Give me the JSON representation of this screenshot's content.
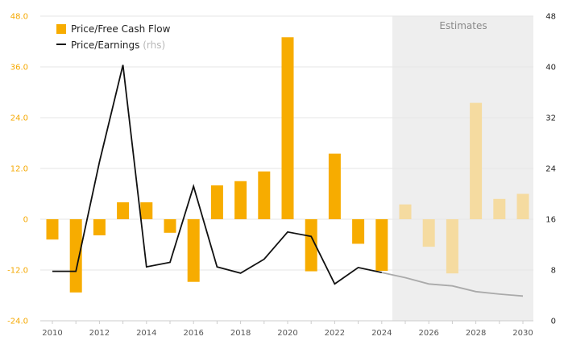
{
  "chart_data": {
    "type": "bar",
    "x": [
      2010,
      2011,
      2012,
      2013,
      2014,
      2015,
      2016,
      2017,
      2018,
      2019,
      2020,
      2021,
      2022,
      2023,
      2024,
      2025,
      2026,
      2027,
      2028,
      2029,
      2030
    ],
    "estimates_from": 2025,
    "estimates_label": "Estimates",
    "series": [
      {
        "name": "Price/Free Cash Flow",
        "kind": "bar",
        "axis": "left",
        "color": "#f7ac00",
        "estimate_color": "#f5dba0",
        "values": [
          -4.8,
          -17.3,
          -3.8,
          4.0,
          4.0,
          -3.2,
          -14.8,
          8.0,
          9.0,
          11.3,
          43.0,
          -12.3,
          15.5,
          -5.8,
          -12.2,
          3.5,
          -6.5,
          -12.8,
          27.5,
          4.8,
          6.0
        ]
      },
      {
        "name": "Price/Earnings",
        "name_suffix": "(rhs)",
        "kind": "line",
        "axis": "right",
        "color": "#111111",
        "estimate_color": "#aaaaaa",
        "values": [
          7.8,
          7.8,
          25.0,
          40.3,
          8.5,
          9.2,
          21.2,
          8.5,
          7.5,
          9.7,
          14.0,
          13.3,
          5.8,
          8.4,
          7.6,
          6.8,
          5.8,
          5.5,
          4.6,
          4.2,
          3.9
        ]
      }
    ],
    "y_left": {
      "ticks": [
        "48.0",
        "36.0",
        "24.0",
        "12.0",
        "0",
        "-12.0",
        "-24.0"
      ],
      "min": -24,
      "max": 48
    },
    "y_right": {
      "ticks": [
        "48",
        "40",
        "32",
        "24",
        "16",
        "8",
        "0"
      ],
      "min": 0,
      "max": 48
    },
    "x_tick_labels": [
      "2010",
      "2012",
      "2014",
      "2016",
      "2018",
      "2020",
      "2022",
      "2024",
      "2026",
      "2028",
      "2030"
    ],
    "grid": true,
    "legend_position": "top-left"
  }
}
